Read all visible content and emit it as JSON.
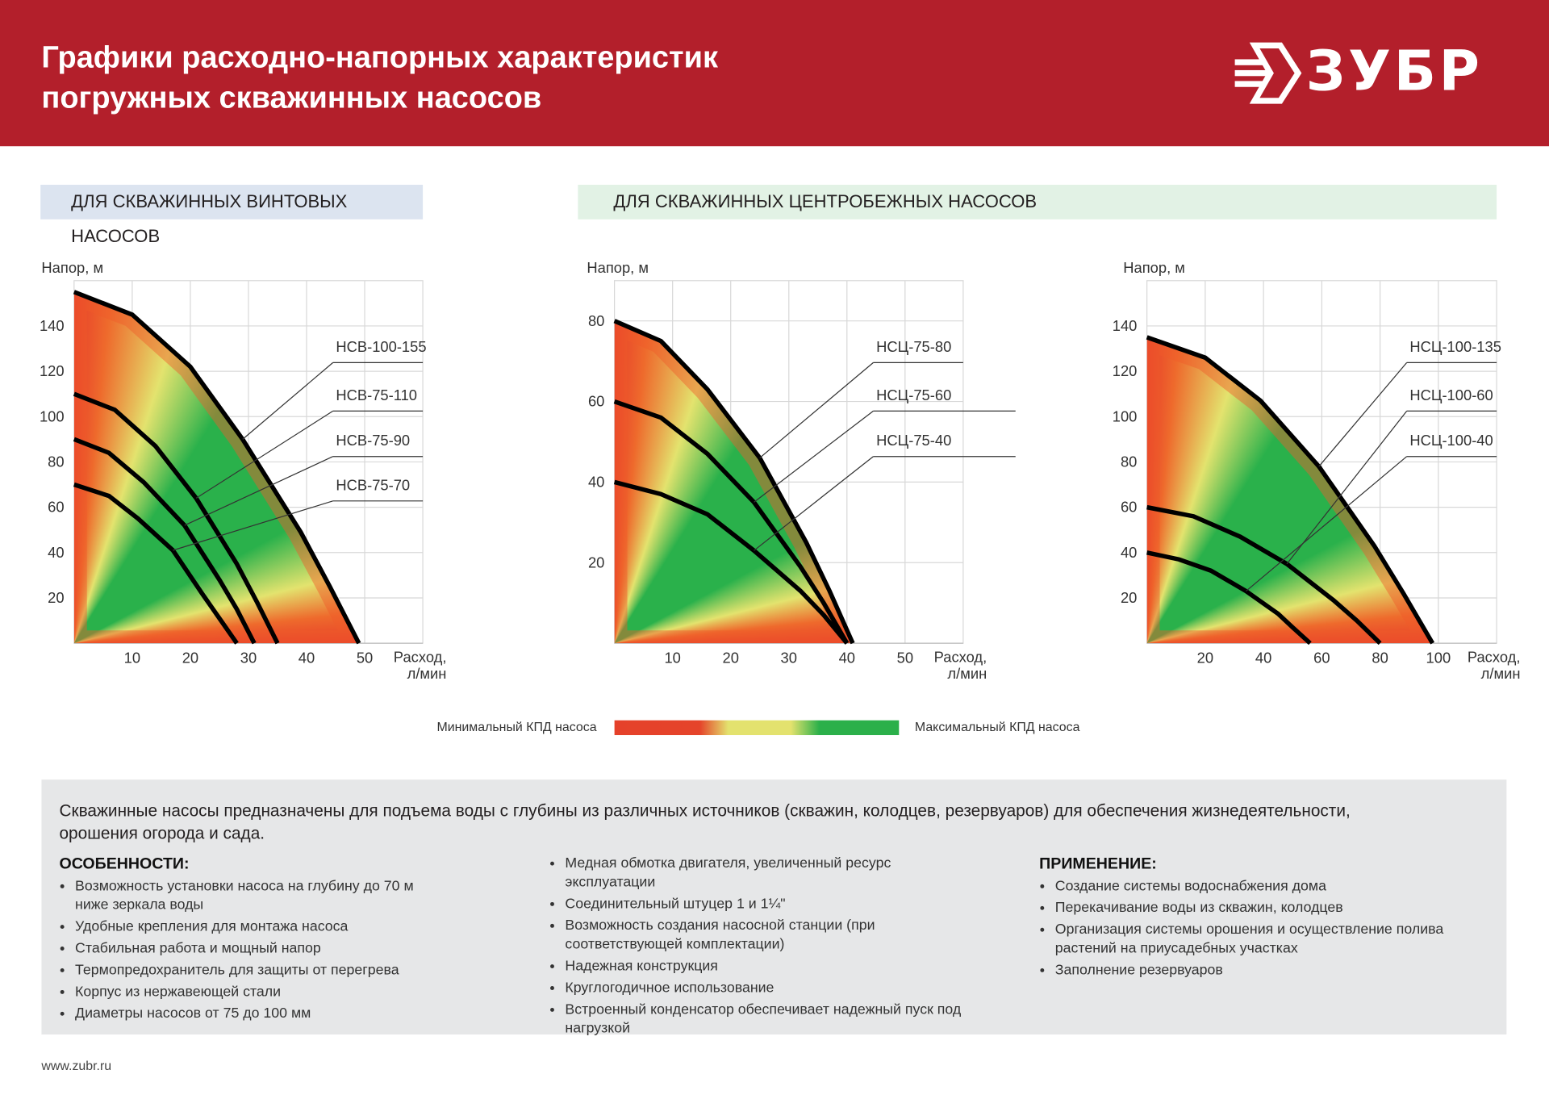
{
  "header": {
    "title": [
      "Графики расходно-напорных характеристик",
      "погружных скважинных насосов"
    ],
    "logo": "ЗУБР"
  },
  "sections": [
    "ДЛЯ СКВАЖИННЫХ ВИНТОВЫХ НАСОСОВ",
    "ДЛЯ СКВАЖИННЫХ ЦЕНТРОБЕЖНЫХ НАСОСОВ"
  ],
  "chart_data": [
    {
      "type": "line",
      "y_label": "Напор, м",
      "x_label": "Расход, л/мин",
      "xlim": [
        0,
        60
      ],
      "xticks": [
        10,
        20,
        30,
        40,
        50
      ],
      "ylim": [
        0,
        160
      ],
      "yticks": [
        20,
        40,
        60,
        80,
        100,
        120,
        140
      ],
      "grid": true,
      "series": [
        {
          "name": "НСВ-100-155",
          "color": "#000000",
          "x": [
            0,
            10,
            20,
            29,
            39,
            44,
            49
          ],
          "values": [
            155,
            145,
            122,
            90,
            49,
            25,
            0
          ]
        },
        {
          "name": "НСВ-75-110",
          "color": "#000000",
          "x": [
            0,
            7,
            14,
            21,
            28,
            31.5,
            35
          ],
          "values": [
            110,
            103,
            87,
            64,
            35,
            18,
            0
          ]
        },
        {
          "name": "НСВ-75-90",
          "color": "#000000",
          "x": [
            0,
            6,
            12,
            19,
            25,
            28,
            31
          ],
          "values": [
            90,
            84,
            71,
            52,
            28,
            15,
            0
          ]
        },
        {
          "name": "НСВ-75-70",
          "color": "#000000",
          "x": [
            0,
            6,
            11,
            17,
            22,
            25,
            28
          ],
          "values": [
            70,
            65,
            55,
            41,
            22,
            11,
            0
          ]
        }
      ]
    },
    {
      "type": "line",
      "y_label": "Напор, м",
      "x_label": "Расход, л/мин",
      "xlim": [
        0,
        60
      ],
      "xticks": [
        10,
        20,
        30,
        40,
        50
      ],
      "ylim": [
        0,
        90
      ],
      "yticks": [
        20,
        40,
        60,
        80
      ],
      "grid": true,
      "series": [
        {
          "name": "НСЦ-75-80",
          "color": "#000000",
          "x": [
            0,
            8,
            16,
            25,
            33,
            37,
            41
          ],
          "values": [
            80,
            75,
            63,
            46,
            25,
            13,
            0
          ]
        },
        {
          "name": "НСЦ-75-60",
          "color": "#000000",
          "x": [
            0,
            8,
            16,
            24,
            32,
            36,
            40
          ],
          "values": [
            60,
            56,
            47,
            35,
            19,
            10,
            0
          ]
        },
        {
          "name": "НСЦ-75-40",
          "color": "#000000",
          "x": [
            0,
            8,
            16,
            24,
            32,
            36,
            40
          ],
          "values": [
            40,
            37,
            32,
            23,
            13,
            7,
            0
          ]
        }
      ]
    },
    {
      "type": "line",
      "y_label": "Напор, м",
      "x_label": "Расход, л/мин",
      "xlim": [
        0,
        120
      ],
      "xticks": [
        20,
        40,
        60,
        80,
        100
      ],
      "ylim": [
        0,
        160
      ],
      "yticks": [
        20,
        40,
        60,
        80,
        100,
        120,
        140
      ],
      "grid": true,
      "series": [
        {
          "name": "НСЦ-100-135",
          "color": "#000000",
          "x": [
            0,
            20,
            39,
            59,
            78,
            88,
            98
          ],
          "values": [
            135,
            126,
            107,
            78,
            43,
            22,
            0
          ]
        },
        {
          "name": "НСЦ-100-60",
          "color": "#000000",
          "x": [
            0,
            16,
            32,
            48,
            64,
            72,
            80
          ],
          "values": [
            60,
            56,
            47,
            35,
            19,
            10,
            0
          ]
        },
        {
          "name": "НСЦ-100-40",
          "color": "#000000",
          "x": [
            0,
            11,
            22,
            34,
            45,
            50,
            56
          ],
          "values": [
            40,
            37,
            32,
            23,
            13,
            7,
            0
          ]
        }
      ]
    }
  ],
  "legend": {
    "min": "Минимальный КПД насоса",
    "max": "Максимальный КПД насоса"
  },
  "info": {
    "intro": "Скважинные насосы предназначены для подъема воды с глубины из различных источников (скважин, колодцев, резервуаров) для обеспечения жизнедеятельности, орошения огорода и сада.",
    "columns": [
      {
        "heading": "ОСОБЕННОСТИ:",
        "items": [
          "Возможность установки насоса на глубину до 70 м ниже зеркала воды",
          "Удобные крепления для монтажа насоса",
          "Стабильная работа и мощный напор",
          "Термопредохранитель для защиты от перегрева",
          "Корпус из нержавеющей стали",
          "Диаметры насосов от 75 до 100 мм"
        ]
      },
      {
        "items": [
          "Медная обмотка двигателя, увеличенный ресурс эксплуатации",
          "Соединительный штуцер 1 и 1¼\"",
          "Возможность создания насосной станции (при соответствующей комплектации)",
          "Надежная конструкция",
          "Круглогодичное использование",
          "Встроенный конденсатор обеспечивает надежный пуск под нагрузкой"
        ]
      },
      {
        "heading": "ПРИМЕНЕНИЕ:",
        "items": [
          "Создание системы водоснабжения дома",
          "Перекачивание воды из скважин, колодцев",
          "Организация системы орошения и осуществление полива растений на приусадебных участках",
          "Заполнение резервуаров"
        ]
      }
    ]
  },
  "footer": "www.zubr.ru"
}
